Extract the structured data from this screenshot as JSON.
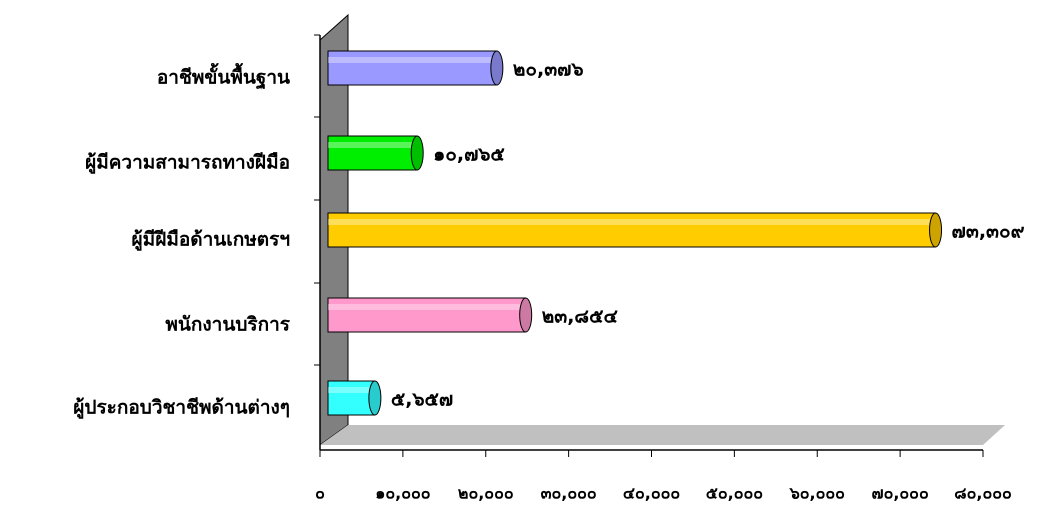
{
  "chart_data": {
    "type": "bar",
    "orientation": "horizontal",
    "categories": [
      "อาชีพขั้นพื้นฐาน",
      "ผู้มีความสามารถทางฝีมือ",
      "ผู้มีฝีมือด้านเกษตรฯ",
      "พนักงานบริการ",
      "ผู้ประกอบวิชาชีพด้านต่างๆ"
    ],
    "values": [
      20376,
      10765,
      73309,
      23854,
      5657
    ],
    "value_labels": [
      "๒๐,๓๗๖",
      "๑๐,๗๖๕",
      "๗๓,๓๐๙",
      "๒๓,๘๕๔",
      "๕,๖๕๗"
    ],
    "colors": [
      "#9999ff",
      "#00ee00",
      "#ffcc00",
      "#ff99cc",
      "#33ffff"
    ],
    "xlim": [
      0,
      80000
    ],
    "xticks": [
      {
        "value": 0,
        "label": "๐"
      },
      {
        "value": 10000,
        "label": "๑๐,๐๐๐"
      },
      {
        "value": 20000,
        "label": "๒๐,๐๐๐"
      },
      {
        "value": 30000,
        "label": "๓๐,๐๐๐"
      },
      {
        "value": 40000,
        "label": "๔๐,๐๐๐"
      },
      {
        "value": 50000,
        "label": "๕๐,๐๐๐"
      },
      {
        "value": 60000,
        "label": "๖๐,๐๐๐"
      },
      {
        "value": 70000,
        "label": "๗๐,๐๐๐"
      },
      {
        "value": 80000,
        "label": "๘๐,๐๐๐"
      }
    ]
  }
}
